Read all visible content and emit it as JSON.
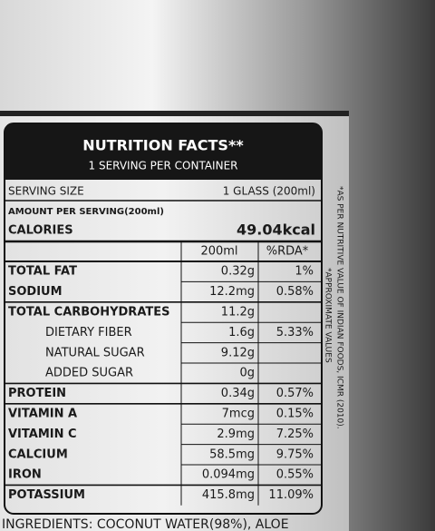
{
  "header": {
    "title": "NUTRITION FACTS**",
    "subtitle": "1 SERVING PER CONTAINER"
  },
  "serving": {
    "label": "SERVING SIZE",
    "value": "1 GLASS (200ml)"
  },
  "amount_per_serving": "AMOUNT PER SERVING(200ml)",
  "calories": {
    "label": "CALORIES",
    "value": "49.04kcal"
  },
  "table": {
    "columns": [
      "200ml",
      "%RDA*"
    ],
    "rows": [
      [
        "TOTAL FAT",
        "0.32g",
        "1%"
      ],
      [
        "SODIUM",
        "12.2mg",
        "0.58%"
      ],
      [
        "TOTAL CARBOHYDRATES",
        "11.2g",
        null
      ],
      [
        "DIETARY FIBER",
        "1.6g",
        "5.33%"
      ],
      [
        "NATURAL SUGAR",
        "9.12g",
        null
      ],
      [
        "ADDED SUGAR",
        "0g",
        null
      ],
      [
        "PROTEIN",
        "0.34g",
        "0.57%"
      ],
      [
        "VITAMIN A",
        "7mcg",
        "0.15%"
      ],
      [
        "VITAMIN C",
        "2.9mg",
        "7.25%"
      ],
      [
        "CALCIUM",
        "58.5mg",
        "9.75%"
      ],
      [
        "IRON",
        "0.094mg",
        "0.55%"
      ],
      [
        "POTASSIUM",
        "415.8mg",
        "11.09%"
      ]
    ]
  },
  "notes": [
    "*APPROXIMATE VALUES",
    "*AS PER NUTRITIVE VALUE OF INDIAN FOODS, ICMR (2010)."
  ],
  "ingredients": "INGREDIENTS: COCONUT WATER(98%), ALOE"
}
